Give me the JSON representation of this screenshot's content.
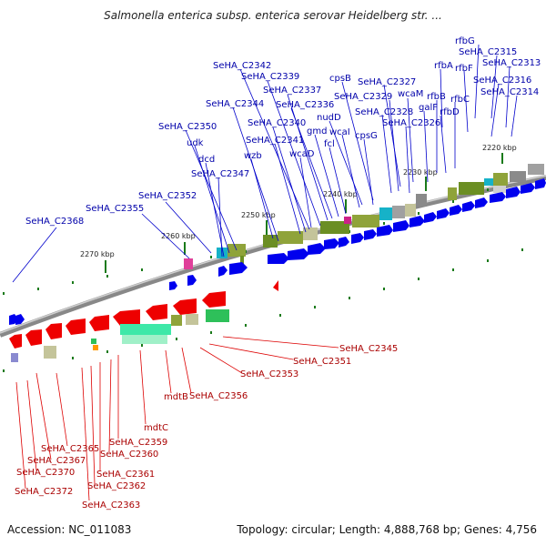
{
  "title": "Salmonella enterica subsp. enterica serovar Heidelberg str. ...",
  "footer": {
    "accession": "Accession: NC_011083",
    "topology": "Topology: circular; Length: 4,888,768 bp; Genes: 4,756"
  },
  "colors": {
    "forward": "#0000ee",
    "reverse": "#ee0000",
    "backbone": "#777777",
    "tick": "#006600"
  },
  "ruler": [
    "2220 kbp",
    "2230 kbp",
    "2240 kbp",
    "2250 kbp",
    "2260 kbp",
    "2270 kbp"
  ],
  "forward_labels": [
    "rfbG",
    "SeHA_C2315",
    "rfbA",
    "rfbF",
    "SeHA_C2313",
    "SeHA_C2316",
    "SeHA_C2314",
    "rfbC",
    "rfbB",
    "rfbD",
    "galF",
    "wcaM",
    "SeHA_C2327",
    "SeHA_C2329",
    "SeHA_C2328",
    "SeHA_C2326",
    "cpsB",
    "cpsG",
    "nudD",
    "wcaI",
    "fcl",
    "gmd",
    "SeHA_C2336",
    "SeHA_C2337",
    "SeHA_C2339",
    "SeHA_C2342",
    "SeHA_C2340",
    "SeHA_C2341",
    "wcaD",
    "SeHA_C2344",
    "wzb",
    "SeHA_C2350",
    "udk",
    "dcd",
    "SeHA_C2347",
    "SeHA_C2352",
    "SeHA_C2355",
    "SeHA_C2368"
  ],
  "reverse_labels": [
    "SeHA_C2345",
    "SeHA_C2351",
    "SeHA_C2353",
    "SeHA_C2356",
    "mdtB",
    "mdtC",
    "SeHA_C2359",
    "SeHA_C2360",
    "SeHA_C2365",
    "SeHA_C2367",
    "SeHA_C2361",
    "SeHA_C2362",
    "SeHA_C2370",
    "SeHA_C2372",
    "SeHA_C2363"
  ]
}
